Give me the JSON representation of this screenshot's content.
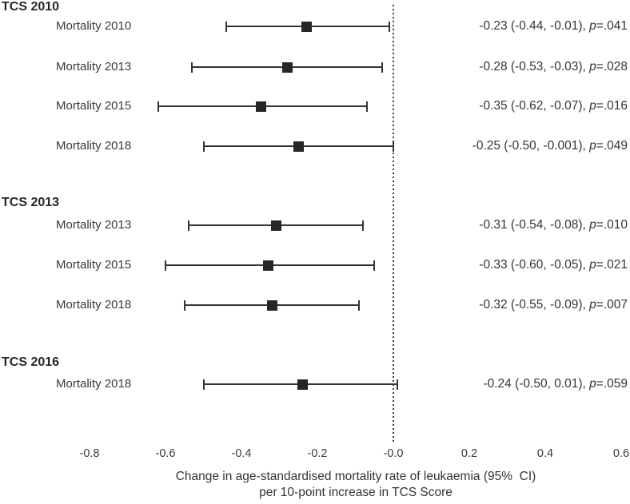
{
  "chart_data": {
    "type": "forest",
    "title": "",
    "xlabel": [
      "Change in age-standardised mortality rate of leukaemia (95%  CI)",
      "per 10-point increase in TCS Score"
    ],
    "x_ticks": [
      {
        "value": -0.8,
        "label": "-0.8"
      },
      {
        "value": -0.6,
        "label": "-0.6"
      },
      {
        "value": -0.4,
        "label": "-0.4"
      },
      {
        "value": -0.2,
        "label": "-0.2"
      },
      {
        "value": 0.0,
        "label": "-0.0"
      },
      {
        "value": 0.2,
        "label": "0.2"
      },
      {
        "value": 0.4,
        "label": "0.4"
      },
      {
        "value": 0.6,
        "label": "0.6"
      }
    ],
    "xlim": [
      -0.9,
      0.65
    ],
    "reference_line": {
      "value": 0.0,
      "style": "dotted"
    },
    "grid": false,
    "legend": null,
    "colors": {
      "marker": "#262626",
      "line": "#343434",
      "text": "#343434",
      "background": "#ffffff"
    },
    "groups": [
      {
        "label": "TCS 2010",
        "rows": [
          {
            "label": "Mortality 2010",
            "estimate": -0.23,
            "ci_low": -0.44,
            "ci_high": -0.01,
            "ci_text": "-0.23 (-0.44, -0.01), ",
            "p_symbol": "p",
            "p_text": "=.041"
          },
          {
            "label": "Mortality 2013",
            "estimate": -0.28,
            "ci_low": -0.53,
            "ci_high": -0.03,
            "ci_text": "-0.28 (-0.53, -0.03), ",
            "p_symbol": "p",
            "p_text": "=.028"
          },
          {
            "label": "Mortality 2015",
            "estimate": -0.35,
            "ci_low": -0.62,
            "ci_high": -0.07,
            "ci_text": "-0.35 (-0.62, -0.07), ",
            "p_symbol": "p",
            "p_text": "=.016"
          },
          {
            "label": "Mortality 2018",
            "estimate": -0.25,
            "ci_low": -0.5,
            "ci_high": -0.001,
            "ci_text": "-0.25 (-0.50, -0.001), ",
            "p_symbol": "p",
            "p_text": "=.049"
          }
        ]
      },
      {
        "label": "TCS 2013",
        "rows": [
          {
            "label": "Mortality 2013",
            "estimate": -0.31,
            "ci_low": -0.54,
            "ci_high": -0.08,
            "ci_text": "-0.31 (-0.54, -0.08), ",
            "p_symbol": "p",
            "p_text": "=.010"
          },
          {
            "label": "Mortality 2015",
            "estimate": -0.33,
            "ci_low": -0.6,
            "ci_high": -0.05,
            "ci_text": "-0.33 (-0.60, -0.05), ",
            "p_symbol": "p",
            "p_text": "=.021"
          },
          {
            "label": "Mortality 2018",
            "estimate": -0.32,
            "ci_low": -0.55,
            "ci_high": -0.09,
            "ci_text": "-0.32 (-0.55, -0.09), ",
            "p_symbol": "p",
            "p_text": "=.007"
          }
        ]
      },
      {
        "label": "TCS 2016",
        "rows": [
          {
            "label": "Mortality 2018",
            "estimate": -0.24,
            "ci_low": -0.5,
            "ci_high": 0.01,
            "ci_text": "-0.24 (-0.50, 0.01), ",
            "p_symbol": "p",
            "p_text": "=.059"
          }
        ]
      }
    ]
  }
}
